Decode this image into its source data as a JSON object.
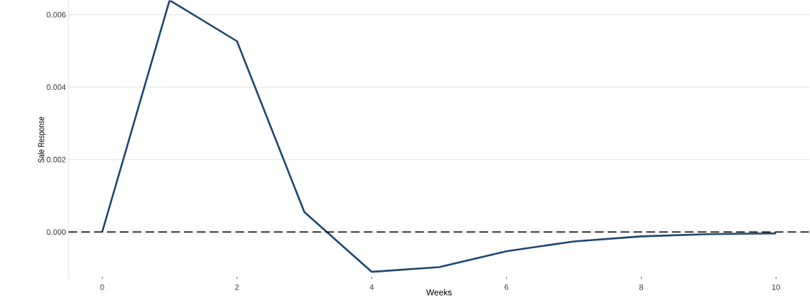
{
  "chart_data": {
    "type": "line",
    "xlabel": "Weeks",
    "ylabel": "Sale Response",
    "x": [
      0,
      1,
      2,
      3,
      4,
      5,
      6,
      7,
      8,
      9,
      10
    ],
    "series": [
      {
        "color": "#1d4670",
        "values": [
          0.0,
          0.0064,
          0.00527,
          0.00055,
          -0.0011,
          -0.00097,
          -0.00053,
          -0.00026,
          -0.00012,
          -6e-05,
          -4e-05
        ]
      }
    ],
    "xlim": [
      -0.5,
      10.5
    ],
    "ylim": [
      -0.0013,
      0.0064
    ],
    "xticks": [
      0,
      2,
      4,
      6,
      8,
      10
    ],
    "yticks": [
      {
        "value": 0.0,
        "label": "0.000"
      },
      {
        "value": 0.002,
        "label": "0.002"
      },
      {
        "value": 0.004,
        "label": "0.004"
      },
      {
        "value": 0.006,
        "label": "0.006"
      }
    ],
    "ref_lines": [
      {
        "axis": "y",
        "value": 0,
        "color": "#000000",
        "line_style": "dashed"
      }
    ],
    "grid": "y"
  }
}
